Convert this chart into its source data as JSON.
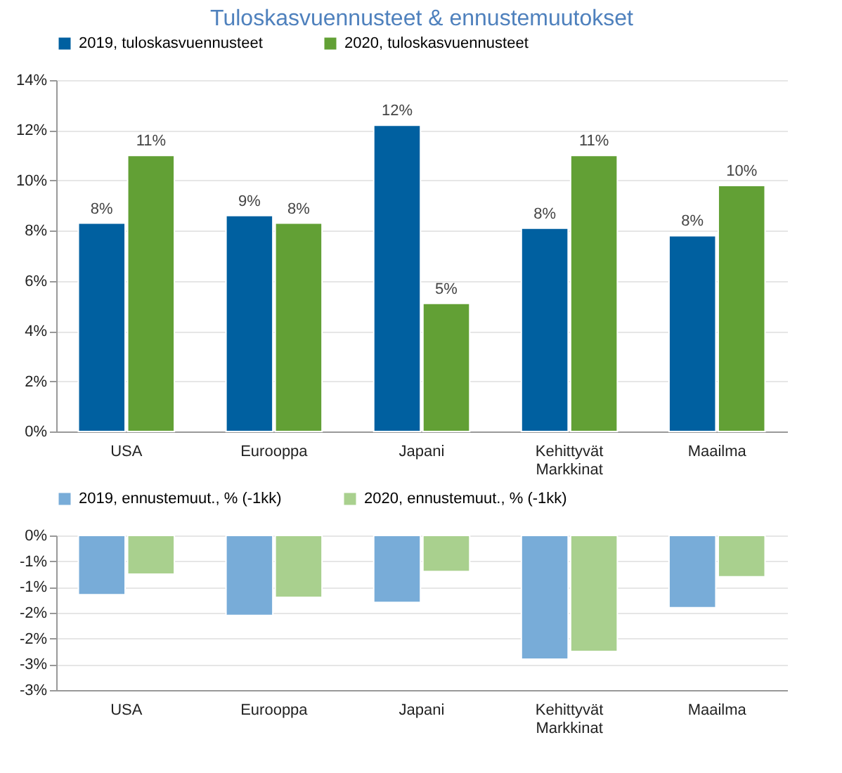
{
  "chart_data": [
    {
      "type": "bar",
      "title": "Tuloskasvuennusteet & ennustemuutokset",
      "categories": [
        "USA",
        "Eurooppa",
        "Japani",
        "Kehittyvät Markkinat",
        "Maailma"
      ],
      "series": [
        {
          "name": "2019, tuloskasvuennusteet",
          "color": "#0060a0",
          "values": [
            8.3,
            8.6,
            12.2,
            8.1,
            7.8
          ],
          "value_labels": [
            "8%",
            "9%",
            "12%",
            "8%",
            "8%"
          ]
        },
        {
          "name": "2020, tuloskasvuennusteet",
          "color": "#62a035",
          "values": [
            11.0,
            8.3,
            5.1,
            11.0,
            9.8
          ],
          "value_labels": [
            "11%",
            "8%",
            "5%",
            "11%",
            "10%"
          ]
        }
      ],
      "ylim": [
        0,
        14
      ],
      "yticks": [
        {
          "value": 0,
          "label": "0%"
        },
        {
          "value": 2,
          "label": "2%"
        },
        {
          "value": 4,
          "label": "4%"
        },
        {
          "value": 6,
          "label": "6%"
        },
        {
          "value": 8,
          "label": "8%"
        },
        {
          "value": 10,
          "label": "10%"
        },
        {
          "value": 12,
          "label": "12%"
        },
        {
          "value": 14,
          "label": "14%"
        }
      ],
      "grid": "y",
      "legend": "top"
    },
    {
      "type": "bar",
      "categories": [
        "USA",
        "Eurooppa",
        "Japani",
        "Kehittyvät Markkinat",
        "Maailma"
      ],
      "series": [
        {
          "name": "2019, ennustemuut., % (-1kk)",
          "color": "#78acd8",
          "values": [
            -1.15,
            -1.55,
            -1.3,
            -2.4,
            -1.4
          ]
        },
        {
          "name": "2020, ennustemuut., % (-1kk)",
          "color": "#a9d08e",
          "values": [
            -0.75,
            -1.2,
            -0.7,
            -2.25,
            -0.8
          ]
        }
      ],
      "ylim": [
        -3,
        0
      ],
      "yticks": [
        {
          "value": 0,
          "label": "0%"
        },
        {
          "value": -0.5,
          "label": "-1%"
        },
        {
          "value": -1,
          "label": "-1%"
        },
        {
          "value": -1.5,
          "label": "-2%"
        },
        {
          "value": -2,
          "label": "-2%"
        },
        {
          "value": -2.5,
          "label": "-3%"
        },
        {
          "value": -3,
          "label": "-3%"
        }
      ],
      "grid": "y",
      "legend": "top"
    }
  ]
}
